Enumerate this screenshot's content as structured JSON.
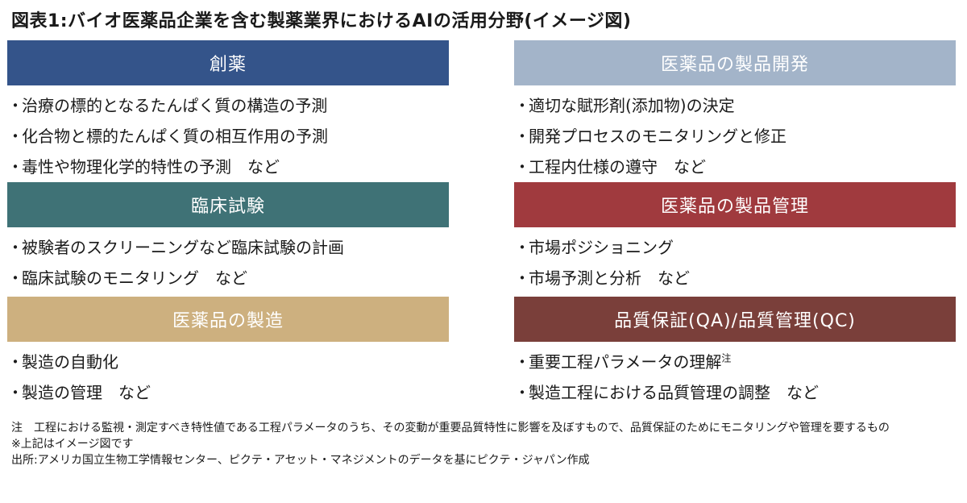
{
  "title": "図表1:バイオ医薬品企業を含む製薬業界におけるAIの活用分野(イメージ図)",
  "left_sections": [
    {
      "header": "創薬",
      "color": "#34548a",
      "items": [
        "治療の標的となるたんぱく質の構造の予測",
        "化合物と標的たんぱく質の相互作用の予測",
        "毒性や物理化学的特性の予測　など"
      ]
    },
    {
      "header": "臨床試験",
      "color": "#3f7276",
      "items": [
        "被験者のスクリーニングなど臨床試験の計画",
        "臨床試験のモニタリング　など"
      ]
    },
    {
      "header": "医薬品の製造",
      "color": "#cdb07f",
      "items": [
        "製造の自動化",
        "製造の管理　など"
      ]
    }
  ],
  "right_sections": [
    {
      "header": "医薬品の製品開発",
      "color": "#a3b4c9",
      "items": [
        "適切な賦形剤(添加物)の決定",
        "開発プロセスのモニタリングと修正",
        "工程内仕様の遵守　など"
      ]
    },
    {
      "header": "医薬品の製品管理",
      "color": "#a03a3e",
      "items": [
        "市場ポジショニング",
        "市場予測と分析　など"
      ]
    },
    {
      "header": "品質保証(QA)/品質管理(QC)",
      "color": "#7a3f3a",
      "items": [
        "重要工程パラメータの理解",
        "製造工程における品質管理の調整　など"
      ],
      "footnote_mark": "注"
    }
  ],
  "bullet": "・",
  "notes": {
    "note_label": "注",
    "note_text": "工程における監視・測定すべき特性値である工程パラメータのうち、その変動が重要品質特性に影響を及ぼすもので、品質保証のためにモニタリングや管理を要するもの",
    "disclaimer": "※上記はイメージ図です",
    "source": "出所:アメリカ国立生物工学情報センター、ピクテ・アセット・マネジメントのデータを基にピクテ・ジャパン作成"
  }
}
